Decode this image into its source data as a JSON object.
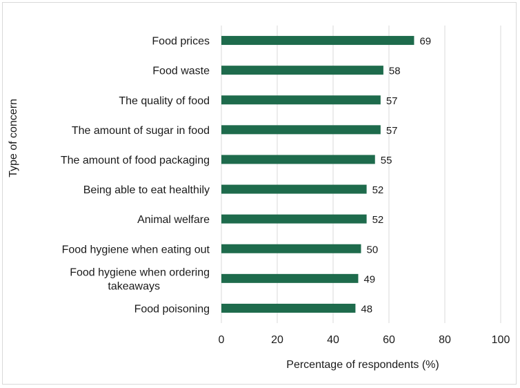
{
  "chart_data": {
    "type": "bar",
    "orientation": "horizontal",
    "title": "",
    "xlabel": "Percentage of respondents (%)",
    "ylabel": "Type of concern",
    "xlim": [
      0,
      100
    ],
    "xticks": [
      0,
      20,
      40,
      60,
      80,
      100
    ],
    "grid": true,
    "legend": "none",
    "bar_color": "#1e6b4c",
    "categories": [
      [
        "Food prices"
      ],
      [
        "Food waste"
      ],
      [
        "The quality of food"
      ],
      [
        "The amount of sugar in food"
      ],
      [
        "The amount of food packaging"
      ],
      [
        "Being able to eat healthily"
      ],
      [
        "Animal welfare"
      ],
      [
        "Food hygiene when eating out"
      ],
      [
        "Food hygiene when ordering",
        "takeaways"
      ],
      [
        "Food poisoning"
      ]
    ],
    "values": [
      69,
      58,
      57,
      57,
      55,
      52,
      52,
      50,
      49,
      48
    ]
  }
}
